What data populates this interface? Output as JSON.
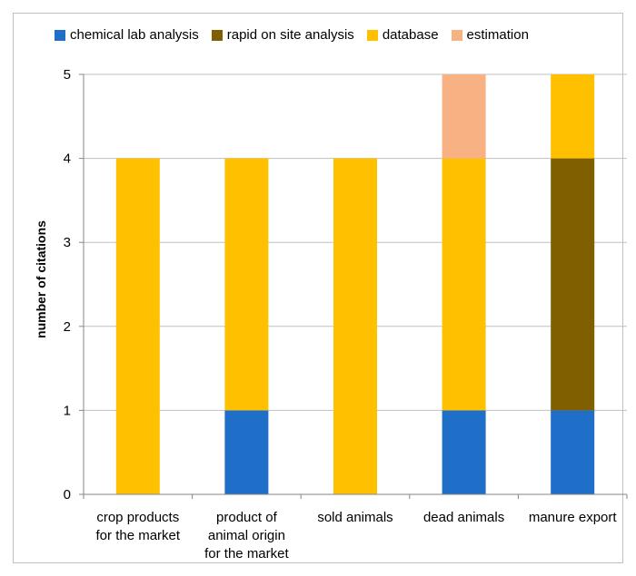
{
  "chart_data": {
    "type": "bar",
    "stacked": true,
    "categories": [
      [
        "crop products",
        "for the market"
      ],
      [
        "product of",
        "animal origin",
        "for the market"
      ],
      [
        "sold animals"
      ],
      [
        "dead animals"
      ],
      [
        "manure export"
      ]
    ],
    "series": [
      {
        "name": "chemical lab analysis",
        "color": "#1f6ec7",
        "values": [
          0,
          1,
          0,
          1,
          1
        ]
      },
      {
        "name": "rapid on site analysis",
        "color": "#7f5f00",
        "values": [
          0,
          0,
          0,
          0,
          3
        ]
      },
      {
        "name": "database",
        "color": "#ffc000",
        "values": [
          4,
          3,
          4,
          3,
          1
        ]
      },
      {
        "name": "estimation",
        "color": "#f8b182",
        "values": [
          0,
          0,
          0,
          1,
          0
        ]
      }
    ],
    "ylabel": "number of citations",
    "xlabel": "",
    "ylim": [
      0,
      5
    ],
    "yticks": [
      0,
      1,
      2,
      3,
      4,
      5
    ],
    "grid": true,
    "legend_position": "top"
  }
}
